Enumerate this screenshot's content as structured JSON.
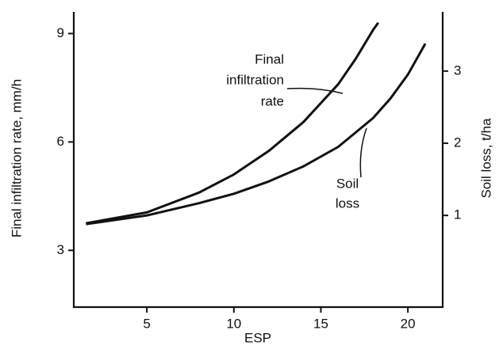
{
  "chart_data": {
    "type": "line",
    "xlabel": "ESP",
    "ylabel": "Final infiltration rate, mm/h",
    "y2label": "Soil loss, t/ha",
    "xlim": [
      0.8,
      22
    ],
    "xticks": [
      5,
      10,
      15,
      20
    ],
    "ylim": [
      1.43,
      9.6
    ],
    "yticks": [
      3,
      6,
      9
    ],
    "y2lim": [
      -0.27,
      3.82
    ],
    "y2ticks": [
      1,
      2,
      3
    ],
    "series": [
      {
        "name": "Final infiltration rate",
        "color": "#111111",
        "x": [
          1.5,
          5,
          8,
          10,
          12,
          14,
          16,
          17,
          18,
          18.3
        ],
        "values": [
          3.75,
          4.05,
          4.6,
          5.1,
          5.75,
          6.55,
          7.6,
          8.3,
          9.1,
          9.3
        ]
      },
      {
        "name": "Soil loss",
        "color": "#111111",
        "axis": "y2",
        "x": [
          1.5,
          5,
          8,
          10,
          12,
          14,
          16,
          18,
          19,
          20,
          21
        ],
        "values": [
          0.88,
          1.0,
          1.17,
          1.3,
          1.47,
          1.68,
          1.95,
          2.35,
          2.62,
          2.95,
          3.38
        ]
      }
    ],
    "annotations": [
      {
        "lines": [
          "Final",
          "infiltration",
          "rate"
        ]
      },
      {
        "lines": [
          "Soil",
          "loss"
        ]
      }
    ]
  }
}
